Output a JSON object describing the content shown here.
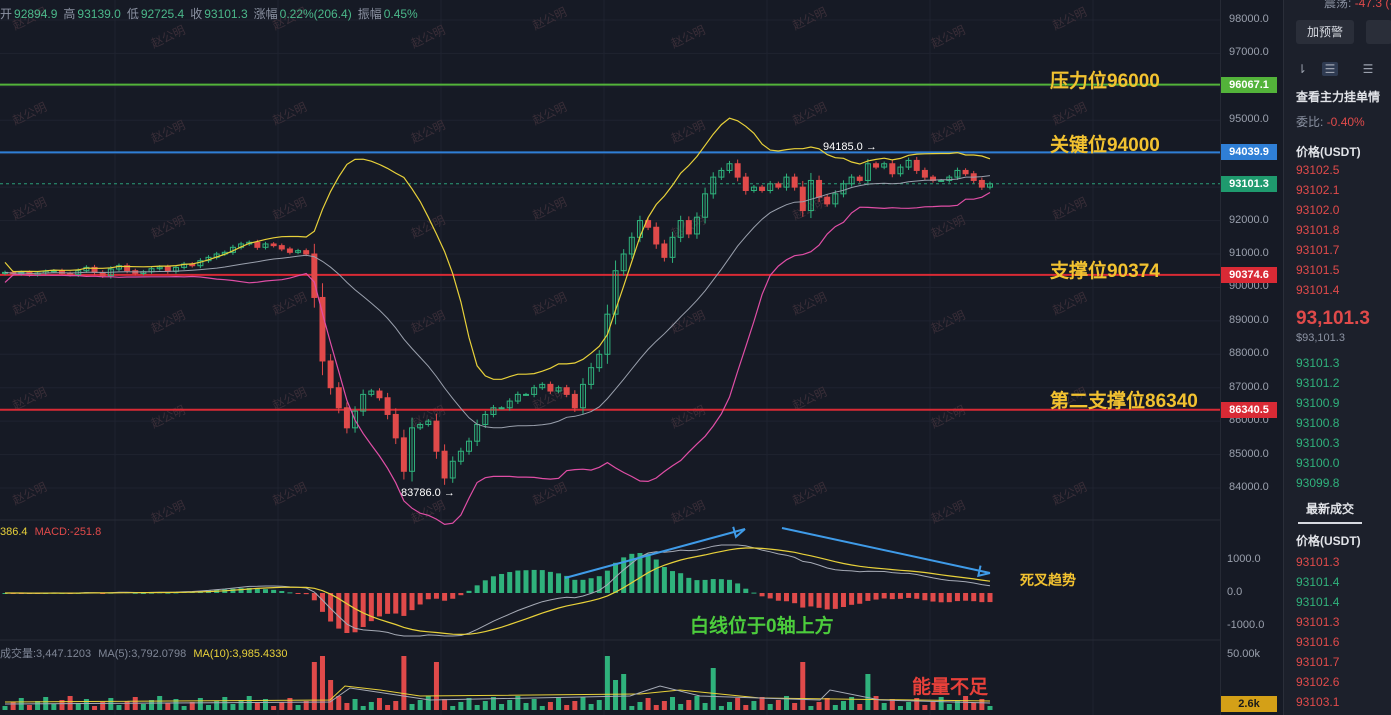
{
  "infobar": [
    {
      "k": "开",
      "v": "92894.9"
    },
    {
      "k": "高",
      "v": "93139.0"
    },
    {
      "k": "低",
      "v": "92725.4"
    },
    {
      "k": "收",
      "v": "93101.3"
    },
    {
      "k": "涨幅",
      "v": "0.22%(206.4)"
    },
    {
      "k": "振幅",
      "v": "0.45%"
    }
  ],
  "macd_label": {
    "dif": "386.4",
    "macd": "MACD:-251.8"
  },
  "vol_label": {
    "vol": "成交量:3,447.1203",
    "ma5": "MA(5):3,792.0798",
    "ma10": "MA(10):3,985.4330"
  },
  "annotations": {
    "pressure": "压力位96000",
    "key": "关键位94000",
    "support": "支撑位90374",
    "support2": "第二支撑位86340",
    "death_cross": "死叉趋势",
    "white_line": "白线位于0轴上方",
    "low_volume": "能量不足",
    "high_mark": "94185.0",
    "low_mark": "83786.0"
  },
  "watermark": "赵公明",
  "colors": {
    "up": "#2fb27c",
    "down": "#e04a4a",
    "pressure": "#53b33a",
    "key": "#2f7fd6",
    "support": "#d92a35",
    "bb_upper": "#e8d13a",
    "bb_mid": "#9aa0ad",
    "bb_lower": "#e04ea6",
    "annot_yellow": "#f2c230",
    "arrow": "#3f9be8"
  },
  "price_axis": {
    "ticks": [
      "98000.0",
      "97000.0",
      "96000.0",
      "95000.0",
      "94000.0",
      "93000.0",
      "92000.0",
      "91000.0",
      "90000.0",
      "89000.0",
      "88000.0",
      "87000.0",
      "86000.0",
      "85000.0",
      "84000.0"
    ]
  },
  "macd_axis": {
    "ticks": [
      "1000.0",
      "0.0",
      "-1000.0"
    ]
  },
  "vol_axis": {
    "ticks": [
      "50.00k"
    ]
  },
  "badges": [
    {
      "text": "96067.1",
      "price": 96067.1,
      "color": "#53b33a"
    },
    {
      "text": "94039.9",
      "price": 94039.9,
      "color": "#2f7fd6"
    },
    {
      "text": "93101.3",
      "price": 93101.3,
      "color": "#1f9a6e"
    },
    {
      "text": "90374.6",
      "price": 90374.6,
      "color": "#d92a35"
    },
    {
      "text": "86340.5",
      "price": 86340.5,
      "color": "#d92a35"
    }
  ],
  "vol_badge": "2.6k",
  "sidebar": {
    "top_line": "-47.3 (-0.0",
    "top_label": "震荡:",
    "alert_btn": "加预警",
    "orderbook_title": "查看主力挂单情",
    "ratio_label": "委比:",
    "ratio_value": "-0.40%",
    "price_header": "价格(USDT)",
    "asks": [
      "93102.5",
      "93102.1",
      "93102.0",
      "93101.8",
      "93101.7",
      "93101.5",
      "93101.4"
    ],
    "last_price": "93,101.3",
    "last_price_usd": "$93,101.3",
    "bids": [
      "93101.3",
      "93101.2",
      "93100.9",
      "93100.8",
      "93100.3",
      "93100.0",
      "93099.8"
    ],
    "trades_title": "最新成交",
    "trades_header": "价格(USDT)",
    "trades": [
      {
        "p": "93101.3",
        "side": "down"
      },
      {
        "p": "93101.4",
        "side": "up"
      },
      {
        "p": "93101.4",
        "side": "up"
      },
      {
        "p": "93101.3",
        "side": "down"
      },
      {
        "p": "93101.6",
        "side": "down"
      },
      {
        "p": "93101.7",
        "side": "down"
      },
      {
        "p": "93102.6",
        "side": "down"
      },
      {
        "p": "93103.1",
        "side": "down"
      }
    ]
  },
  "chart_data": {
    "type": "candlestick",
    "y_range": [
      83300,
      98300
    ],
    "levels": [
      {
        "name": "压力位96000",
        "price": 96067.1
      },
      {
        "name": "关键位94000",
        "price": 94039.9
      },
      {
        "name": "支撑位90374",
        "price": 90374.6
      },
      {
        "name": "第二支撑位86340",
        "price": 86340.5
      }
    ],
    "last_price": 93101.3,
    "candle_closes": [
      90450,
      90400,
      90450,
      90380,
      90430,
      90480,
      90500,
      90420,
      90380,
      90500,
      90600,
      90450,
      90350,
      90550,
      90650,
      90500,
      90420,
      90470,
      90560,
      90610,
      90480,
      90600,
      90700,
      90650,
      90800,
      90900,
      91000,
      91050,
      91200,
      91300,
      91350,
      91200,
      91300,
      91250,
      91150,
      91050,
      91100,
      91000,
      89700,
      87800,
      87000,
      86400,
      85800,
      86300,
      86800,
      86900,
      86700,
      86200,
      85500,
      84500,
      85800,
      85900,
      86000,
      85100,
      84300,
      84800,
      85100,
      85400,
      85900,
      86200,
      86400,
      86400,
      86600,
      86800,
      86800,
      87000,
      87100,
      86900,
      87000,
      86800,
      86400,
      87100,
      87600,
      88000,
      89200,
      90500,
      91000,
      91500,
      92000,
      91800,
      91300,
      90900,
      91500,
      92000,
      91600,
      92100,
      92800,
      93300,
      93500,
      93700,
      93300,
      92900,
      93000,
      92900,
      93100,
      93000,
      93300,
      93000,
      92300,
      93200,
      92700,
      92500,
      92800,
      93100,
      93300,
      93200,
      93700,
      93600,
      93700,
      93400,
      93600,
      93800,
      93500,
      93300,
      93200,
      93200,
      93300,
      93500,
      93400,
      93200,
      93000,
      93100
    ],
    "volume_note": "relative volumes estimated"
  }
}
